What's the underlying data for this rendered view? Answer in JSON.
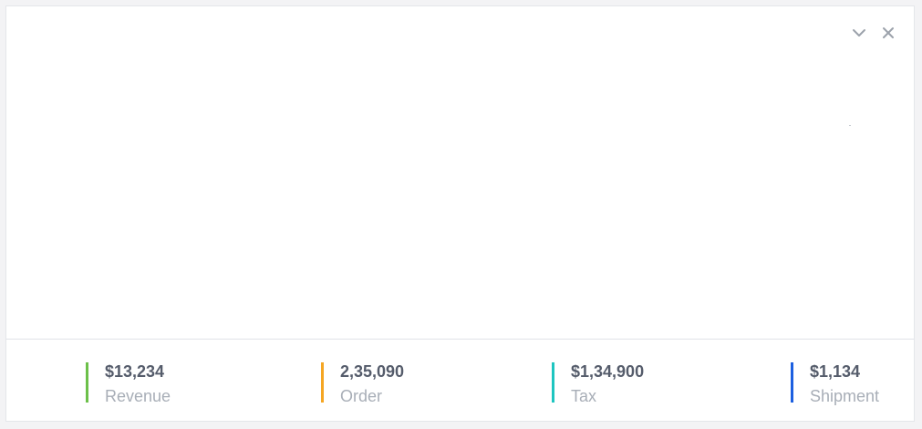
{
  "widget": {
    "collapse_icon": "chevron-down-icon",
    "close_icon": "close-icon"
  },
  "stats": [
    {
      "value": "$13,234",
      "label": "Revenue",
      "color": "#6cc04a"
    },
    {
      "value": "2,35,090",
      "label": "Order",
      "color": "#f5a623"
    },
    {
      "value": "$1,34,900",
      "label": "Tax",
      "color": "#1ec5c0"
    },
    {
      "value": "$1,134",
      "label": "Shipment",
      "color": "#1c5fe0"
    }
  ]
}
